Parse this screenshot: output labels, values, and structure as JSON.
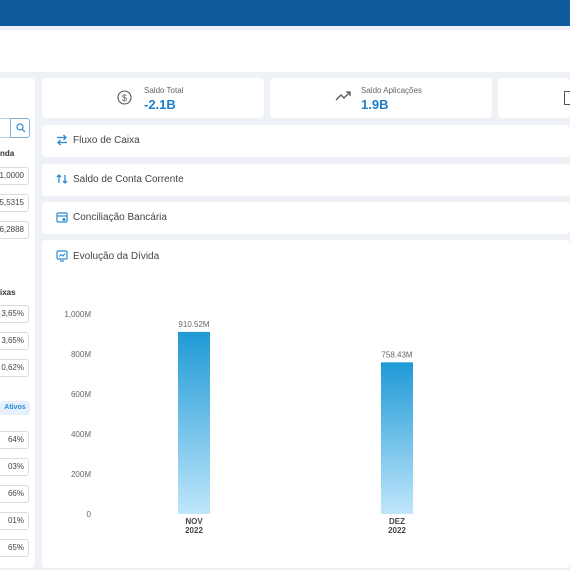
{
  "sidebar": {
    "section1_heading": "nda",
    "section1_values": [
      "1,0000",
      "5,5315",
      "6,2888"
    ],
    "section2_heading": "ixas",
    "section2_values": [
      "3,65%",
      "3,65%",
      "0,62%"
    ],
    "badge": "Ativos",
    "section3_values": [
      "64%",
      "03%",
      "66%",
      "01%",
      "65%"
    ]
  },
  "kpis": [
    {
      "label": "Saldo Total",
      "value": "-2.1B",
      "icon": "dollar-circle-icon"
    },
    {
      "label": "Saldo Aplicações",
      "value": "1.9B",
      "icon": "trend-up-icon"
    }
  ],
  "panels": [
    {
      "title": "Fluxo de Caixa",
      "icon": "transfer-icon"
    },
    {
      "title": "Saldo de Conta Corrente",
      "icon": "refresh-arrows-icon"
    },
    {
      "title": "Conciliação Bancária",
      "icon": "calendar-icon"
    }
  ],
  "chart_panel": {
    "title": "Evolução da Dívida",
    "icon": "chart-card-icon"
  },
  "chart_data": {
    "type": "bar",
    "categories": [
      [
        "NOV",
        "2022"
      ],
      [
        "DEZ",
        "2022"
      ]
    ],
    "values": [
      910.52,
      758.43
    ],
    "data_labels": [
      "910.52M",
      "758.43M"
    ],
    "y_ticks": [
      "0",
      "200M",
      "400M",
      "600M",
      "800M",
      "1,000M"
    ],
    "ylim": [
      0,
      1000
    ],
    "grid": false,
    "colors": {
      "bar_top": "#1f9ad6",
      "bar_bottom": "#bfe6fb"
    }
  }
}
